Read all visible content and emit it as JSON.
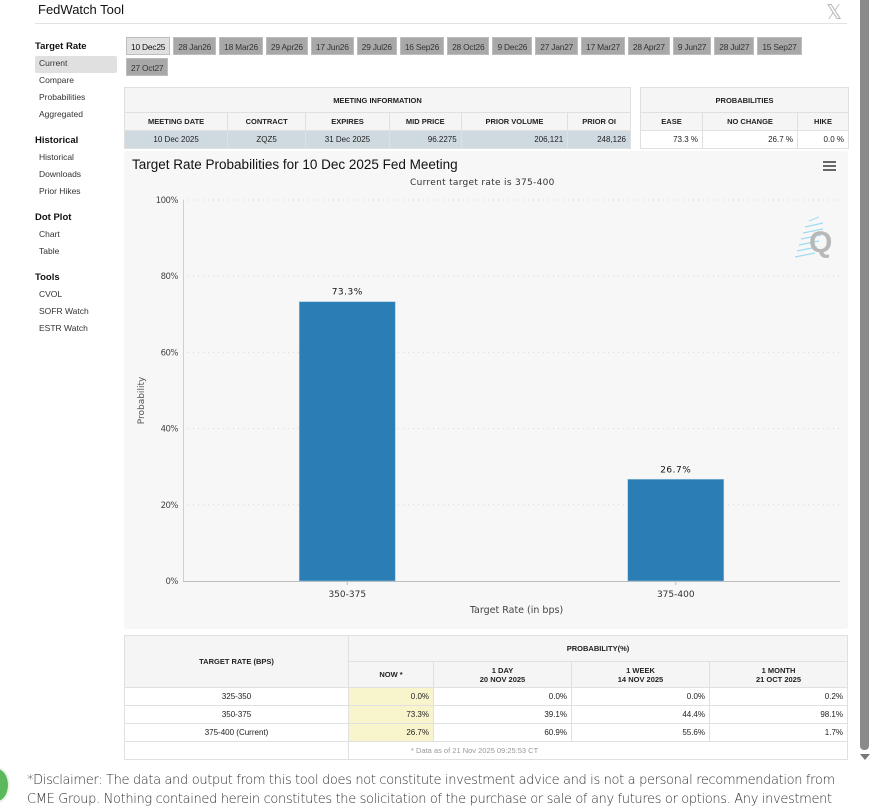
{
  "app": {
    "title": "FedWatch Tool",
    "close_label": "𝕏"
  },
  "sidebar": {
    "sections": [
      {
        "heading": "Target Rate",
        "items": [
          "Current",
          "Compare",
          "Probabilities",
          "Aggregated"
        ]
      },
      {
        "heading": "Historical",
        "items": [
          "Historical",
          "Downloads",
          "Prior Hikes"
        ]
      },
      {
        "heading": "Dot Plot",
        "items": [
          "Chart",
          "Table"
        ]
      },
      {
        "heading": "Tools",
        "items": [
          "CVOL",
          "SOFR Watch",
          "ESTR Watch"
        ]
      }
    ],
    "active_item": "Current"
  },
  "meeting_tabs": [
    "10 Dec25",
    "28 Jan26",
    "18 Mar26",
    "29 Apr26",
    "17 Jun26",
    "29 Jul26",
    "16 Sep26",
    "28 Oct26",
    "9 Dec26",
    "27 Jan27",
    "17 Mar27",
    "28 Apr27",
    "9 Jun27",
    "28 Jul27",
    "15 Sep27",
    "27 Oct27"
  ],
  "active_tab": "10 Dec25",
  "meeting_info": {
    "title": "MEETING INFORMATION",
    "headers": [
      "MEETING DATE",
      "CONTRACT",
      "EXPIRES",
      "MID PRICE",
      "PRIOR VOLUME",
      "PRIOR OI"
    ],
    "row": [
      "10 Dec 2025",
      "ZQZ5",
      "31 Dec 2025",
      "96.2275",
      "206,121",
      "248,126"
    ]
  },
  "probabilities": {
    "title": "PROBABILITIES",
    "headers": [
      "EASE",
      "NO CHANGE",
      "HIKE"
    ],
    "row": [
      "73.3 %",
      "26.7 %",
      "0.0 %"
    ]
  },
  "chart_data": {
    "type": "bar",
    "title": "Target Rate Probabilities for 10 Dec 2025 Fed Meeting",
    "subtitle": "Current target rate is 375-400",
    "categories": [
      "350-375",
      "375-400"
    ],
    "values": [
      73.3,
      26.7
    ],
    "data_labels": [
      "73.3%",
      "26.7%"
    ],
    "xlabel": "Target Rate (in bps)",
    "ylabel": "Probability",
    "ylim": [
      0,
      100
    ],
    "yticks": [
      0,
      20,
      40,
      60,
      80,
      100
    ],
    "ytick_labels": [
      "0%",
      "20%",
      "40%",
      "60%",
      "80%",
      "100%"
    ],
    "grid": true,
    "bar_color": "#2a7db5",
    "legend": "none"
  },
  "history_table": {
    "rate_header": "TARGET RATE (BPS)",
    "group_header": "PROBABILITY(%)",
    "columns": [
      {
        "line1": "NOW *",
        "line2": ""
      },
      {
        "line1": "1 DAY",
        "line2": "20 NOV 2025"
      },
      {
        "line1": "1 WEEK",
        "line2": "14 NOV 2025"
      },
      {
        "line1": "1 MONTH",
        "line2": "21 OCT 2025"
      }
    ],
    "rows": [
      {
        "rate": "325-350",
        "values": [
          "0.0%",
          "0.0%",
          "0.0%",
          "0.2%"
        ]
      },
      {
        "rate": "350-375",
        "values": [
          "73.3%",
          "39.1%",
          "44.4%",
          "98.1%"
        ]
      },
      {
        "rate": "375-400 (Current)",
        "values": [
          "26.7%",
          "60.9%",
          "55.6%",
          "1.7%"
        ]
      }
    ],
    "footnote": "* Data as of 21 Nov 2025 09:25:53 CT"
  },
  "disclaimer": "*Disclaimer: The data and output from this tool does not constitute investment advice and is not a personal recommendation from CME Group.  Nothing contained herein constitutes the solicitation of the purchase or sale of any futures or options.  Any investment"
}
